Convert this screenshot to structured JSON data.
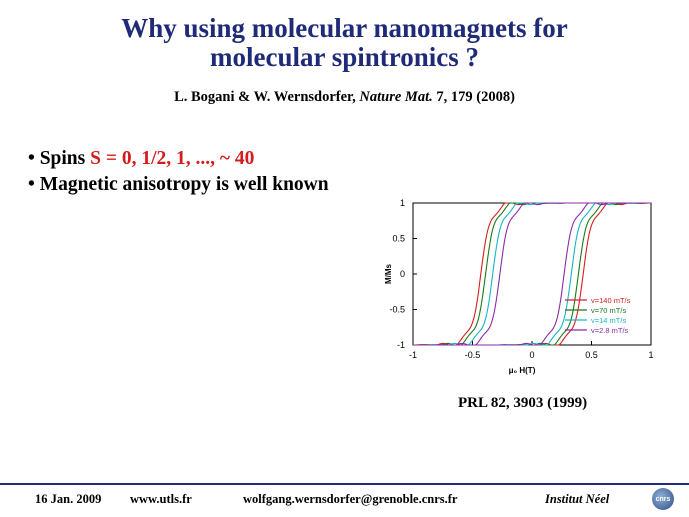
{
  "title_line1": "Why using molecular nanomagnets for",
  "title_line2": "molecular spintronics ?",
  "reference": {
    "authors": "L. Bogani & W. Wernsdorfer, ",
    "journal": "Nature Mat.",
    "rest": " 7, 179 (2008)"
  },
  "bullets": [
    {
      "prefix": "• Spins ",
      "highlight": "S = 0, 1/2, 1, ..., ~ 40",
      "suffix": ""
    },
    {
      "prefix": "• Magnetic anisotropy is well known",
      "highlight": "",
      "suffix": ""
    }
  ],
  "chart_data": {
    "type": "line",
    "xlabel": "μ₀ H(T)",
    "ylabel": "M/Ms",
    "xlim": [
      -1,
      1
    ],
    "ylim": [
      -1,
      1
    ],
    "xticks": [
      "-1",
      "-0.5",
      "0",
      "0.5",
      "1"
    ],
    "yticks": [
      "1",
      "0.5",
      "0",
      "-0.5",
      "-1"
    ],
    "legend_position": "bottom-right",
    "series": [
      {
        "name": "v=140 mT/s",
        "color": "#d42020",
        "coercive": 0.43
      },
      {
        "name": "v=70 mT/s",
        "color": "#1a7a1a",
        "coercive": 0.39
      },
      {
        "name": "v=14 mT/s",
        "color": "#16b6c8",
        "coercive": 0.33
      },
      {
        "name": "v=2.8 mT/s",
        "color": "#8a2ca8",
        "coercive": 0.27
      }
    ]
  },
  "figure_citation": "PRL 82,  3903 (1999)",
  "footer": {
    "date": "16 Jan. 2009",
    "website": "www.utls.fr",
    "email": "wolfgang.wernsdorfer@grenoble.cnrs.fr",
    "institute": "Institut Néel",
    "logo_text": "cnrs"
  }
}
